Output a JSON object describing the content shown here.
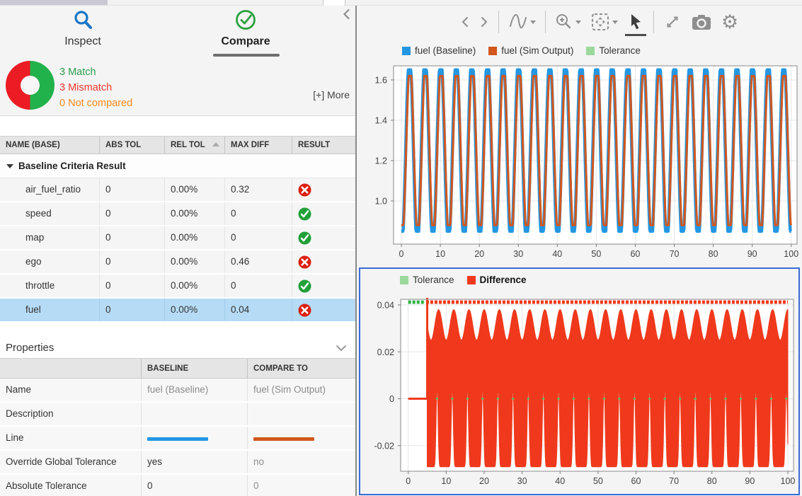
{
  "left_panel": {
    "tabs": {
      "inspect": "Inspect",
      "compare": "Compare"
    },
    "summary": {
      "match": "3 Match",
      "mismatch": "3 Mismatch",
      "not_compared": "0 Not compared",
      "more": "[+] More"
    },
    "filter": {
      "value": "",
      "placeholder": ""
    },
    "results_table": {
      "headers": [
        "NAME (BASE)",
        "ABS TOL",
        "REL TOL",
        "MAX DIFF",
        "RESULT"
      ],
      "sorted_column": "REL TOL",
      "group_label": "Baseline Criteria Result",
      "rows": [
        {
          "name": "air_fuel_ratio",
          "abs_tol": "0",
          "rel_tol": "0.00%",
          "max_diff": "0.32",
          "result": "fail",
          "selected": false
        },
        {
          "name": "speed",
          "abs_tol": "0",
          "rel_tol": "0.00%",
          "max_diff": "0",
          "result": "pass",
          "selected": false
        },
        {
          "name": "map",
          "abs_tol": "0",
          "rel_tol": "0.00%",
          "max_diff": "0",
          "result": "pass",
          "selected": false
        },
        {
          "name": "ego",
          "abs_tol": "0",
          "rel_tol": "0.00%",
          "max_diff": "0.46",
          "result": "fail",
          "selected": false
        },
        {
          "name": "throttle",
          "abs_tol": "0",
          "rel_tol": "0.00%",
          "max_diff": "0",
          "result": "pass",
          "selected": false
        },
        {
          "name": "fuel",
          "abs_tol": "0",
          "rel_tol": "0.00%",
          "max_diff": "0.04",
          "result": "fail",
          "selected": true
        }
      ]
    },
    "properties": {
      "title": "Properties",
      "col_headers": [
        "BASELINE",
        "COMPARE TO"
      ],
      "rows": [
        {
          "label": "Name",
          "baseline": "fuel (Baseline)",
          "compare": "fuel (Sim Output)",
          "type": "text-muted"
        },
        {
          "label": "Description",
          "baseline": "",
          "compare": "",
          "type": "text-muted"
        },
        {
          "label": "Line",
          "baseline": "#2497E3",
          "compare": "#D2571D",
          "type": "line-swatch"
        },
        {
          "label": "Override Global Tolerance",
          "baseline": "yes",
          "compare": "no",
          "type": "text-baseline-dark"
        },
        {
          "label": "Absolute Tolerance",
          "baseline": "0",
          "compare": "0",
          "type": "text-baseline-dark"
        }
      ]
    }
  },
  "toolbar": {
    "icons": [
      "previous",
      "next",
      "signal-trace",
      "zoom-in",
      "fit-to-view",
      "pointer",
      "expand",
      "snapshot",
      "settings"
    ],
    "selected": "pointer"
  },
  "colors": {
    "donut_match": "#21b24b",
    "donut_mismatch": "#ec1c24",
    "match_text": "#2da04c",
    "mismatch_text": "#ee3a30",
    "not_compared_text": "#f68a1e",
    "pass_icon": "#21a038",
    "fail_icon": "#dc1f0f",
    "selected_row": "#b5dbf5",
    "selection_border": "#3b6bd6"
  },
  "chart_data": [
    {
      "type": "line",
      "title": "fuel signal comparison",
      "legend": [
        {
          "label": "fuel (Baseline)",
          "color": "#2497E3",
          "bold": false
        },
        {
          "label": "fuel (Sim Output)",
          "color": "#D2571D",
          "bold": false
        },
        {
          "label": "Tolerance",
          "color": "#9CD89C",
          "bold": false
        }
      ],
      "xlim": [
        -2,
        101.5
      ],
      "ylim": [
        0.786,
        1.67
      ],
      "x_ticks": [
        0,
        10,
        20,
        30,
        40,
        50,
        60,
        70,
        80,
        90,
        100
      ],
      "y_ticks": [
        {
          "v": 1.0,
          "label": "1.0"
        },
        {
          "v": 1.2,
          "label": "1.2"
        },
        {
          "v": 1.4,
          "label": "1.4"
        },
        {
          "v": 1.6,
          "label": "1.6"
        }
      ],
      "grid": true,
      "series": [
        {
          "name": "fuel (Baseline)",
          "color": "#2497E3",
          "line_width": 4.5,
          "mid": 1.25,
          "amplitude": 0.4,
          "period": 4,
          "phase": 1.1,
          "clip": 1.18,
          "x_start": 0,
          "x_end": 100
        },
        {
          "name": "fuel (Sim Output)",
          "color": "#D2571D",
          "line_width": 3.0,
          "mid": 1.25,
          "amplitude": 0.37,
          "period": 4,
          "phase": 1.22,
          "clip": 1.18,
          "x_start": 0,
          "x_end": 100
        }
      ]
    },
    {
      "type": "area",
      "title": "difference",
      "legend": [
        {
          "label": "Tolerance",
          "color": "#9CD89C",
          "bold": false
        },
        {
          "label": "Difference",
          "color": "#F0391C",
          "bold": true
        }
      ],
      "xlim": [
        -2,
        101.5
      ],
      "ylim": [
        -0.0309,
        0.0424
      ],
      "x_ticks": [
        0,
        10,
        20,
        30,
        40,
        50,
        60,
        70,
        80,
        90,
        100
      ],
      "y_ticks": [
        {
          "v": -0.02,
          "label": "-0.02"
        },
        {
          "v": 0,
          "label": "0"
        },
        {
          "v": 0.02,
          "label": "0.02"
        },
        {
          "v": 0.04,
          "label": "0.04"
        }
      ],
      "grid": true,
      "difference": {
        "color": "#F0391C",
        "flat_zero_until": 5,
        "spike_x": 5,
        "spike_value": 0.043,
        "upper_envelope": {
          "base": 0.0315,
          "amplitude": 0.0065,
          "period": 4,
          "phase": 3
        },
        "lower_envelope": {
          "base": -0.029,
          "notch_height": 0.034,
          "notch_period": 4,
          "notch_phase": 7.6,
          "notch_exponent": 6
        },
        "x_end": 100
      },
      "tolerance_marks": {
        "color": "#5bbf5b",
        "y": 0,
        "x_start": 7.6,
        "spacing": 4,
        "half_width": 0.3
      },
      "indicator_strip": {
        "pass_color": "#2fb344",
        "fail_color": "#f0391c",
        "pass_until": 4.4
      }
    }
  ]
}
